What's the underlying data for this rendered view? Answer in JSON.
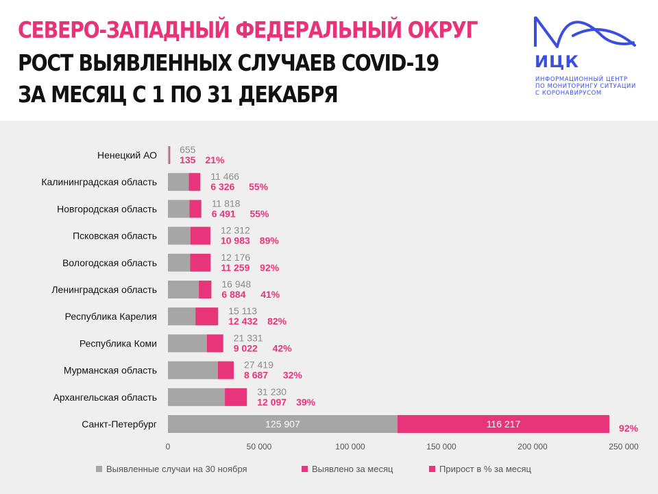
{
  "header": {
    "title_line1": "СЕВЕРО-ЗАПАДНЫЙ ФЕДЕРАЛЬНЫЙ ОКРУГ",
    "title_line2": "РОСТ ВЫЯВЛЕННЫХ СЛУЧАЕВ COVID-19",
    "title_line3": "ЗА МЕСЯЦ С 1 ПО 31 ДЕКАБРЯ"
  },
  "logo": {
    "abbr": "ИЦК",
    "line1": "ИНФОРМАЦИОННЫЙ ЦЕНТР",
    "line2": "ПО МОНИТОРИНГУ СИТУАЦИИ",
    "line3": "С КОРОНАВИРУСОМ",
    "color": "#3a4ee0"
  },
  "colors": {
    "base": "#a6a6a6",
    "growth": "#e8357a",
    "percent": "#e8357a",
    "base_label": "#8c8c8c"
  },
  "chart_data": {
    "type": "bar",
    "orientation": "horizontal",
    "stacked": true,
    "categories": [
      "Ненецкий АО",
      "Калининградская область",
      "Новгородская область",
      "Псковская область",
      "Вологодская область",
      "Ленинградская область",
      "Республика Карелия",
      "Республика Коми",
      "Мурманская область",
      "Архангельская область",
      "Санкт-Петербург"
    ],
    "series": [
      {
        "name": "Выявленные случаи на 30 ноября",
        "values": [
          655,
          11466,
          11818,
          12312,
          12176,
          16948,
          15113,
          21331,
          27419,
          31230,
          125907
        ],
        "labels": [
          "655",
          "11 466",
          "11 818",
          "12 312",
          "12 176",
          "16 948",
          "15 113",
          "21 331",
          "27 419",
          "31 230",
          "125 907"
        ]
      },
      {
        "name": "Выявлено за месяц",
        "values": [
          135,
          6326,
          6491,
          10983,
          11259,
          6884,
          12432,
          9022,
          8687,
          12097,
          116217
        ],
        "labels": [
          "135",
          "6 326",
          "6 491",
          "10 983",
          "11 259",
          "6 884",
          "12 432",
          "9 022",
          "8 687",
          "12 097",
          "116 217"
        ]
      },
      {
        "name": "Прирост в % за месяц",
        "labels": [
          "21%",
          "55%",
          "55%",
          "89%",
          "92%",
          "41%",
          "82%",
          "42%",
          "32%",
          "39%",
          "92%"
        ]
      }
    ],
    "xlim": [
      0,
      250000
    ],
    "xticks": [
      0,
      50000,
      100000,
      150000,
      200000,
      250000
    ],
    "xtick_labels": [
      "0",
      "50 000",
      "100 000",
      "150 000",
      "200 000",
      "250 000"
    ],
    "grid": false,
    "legend_position": "bottom"
  }
}
